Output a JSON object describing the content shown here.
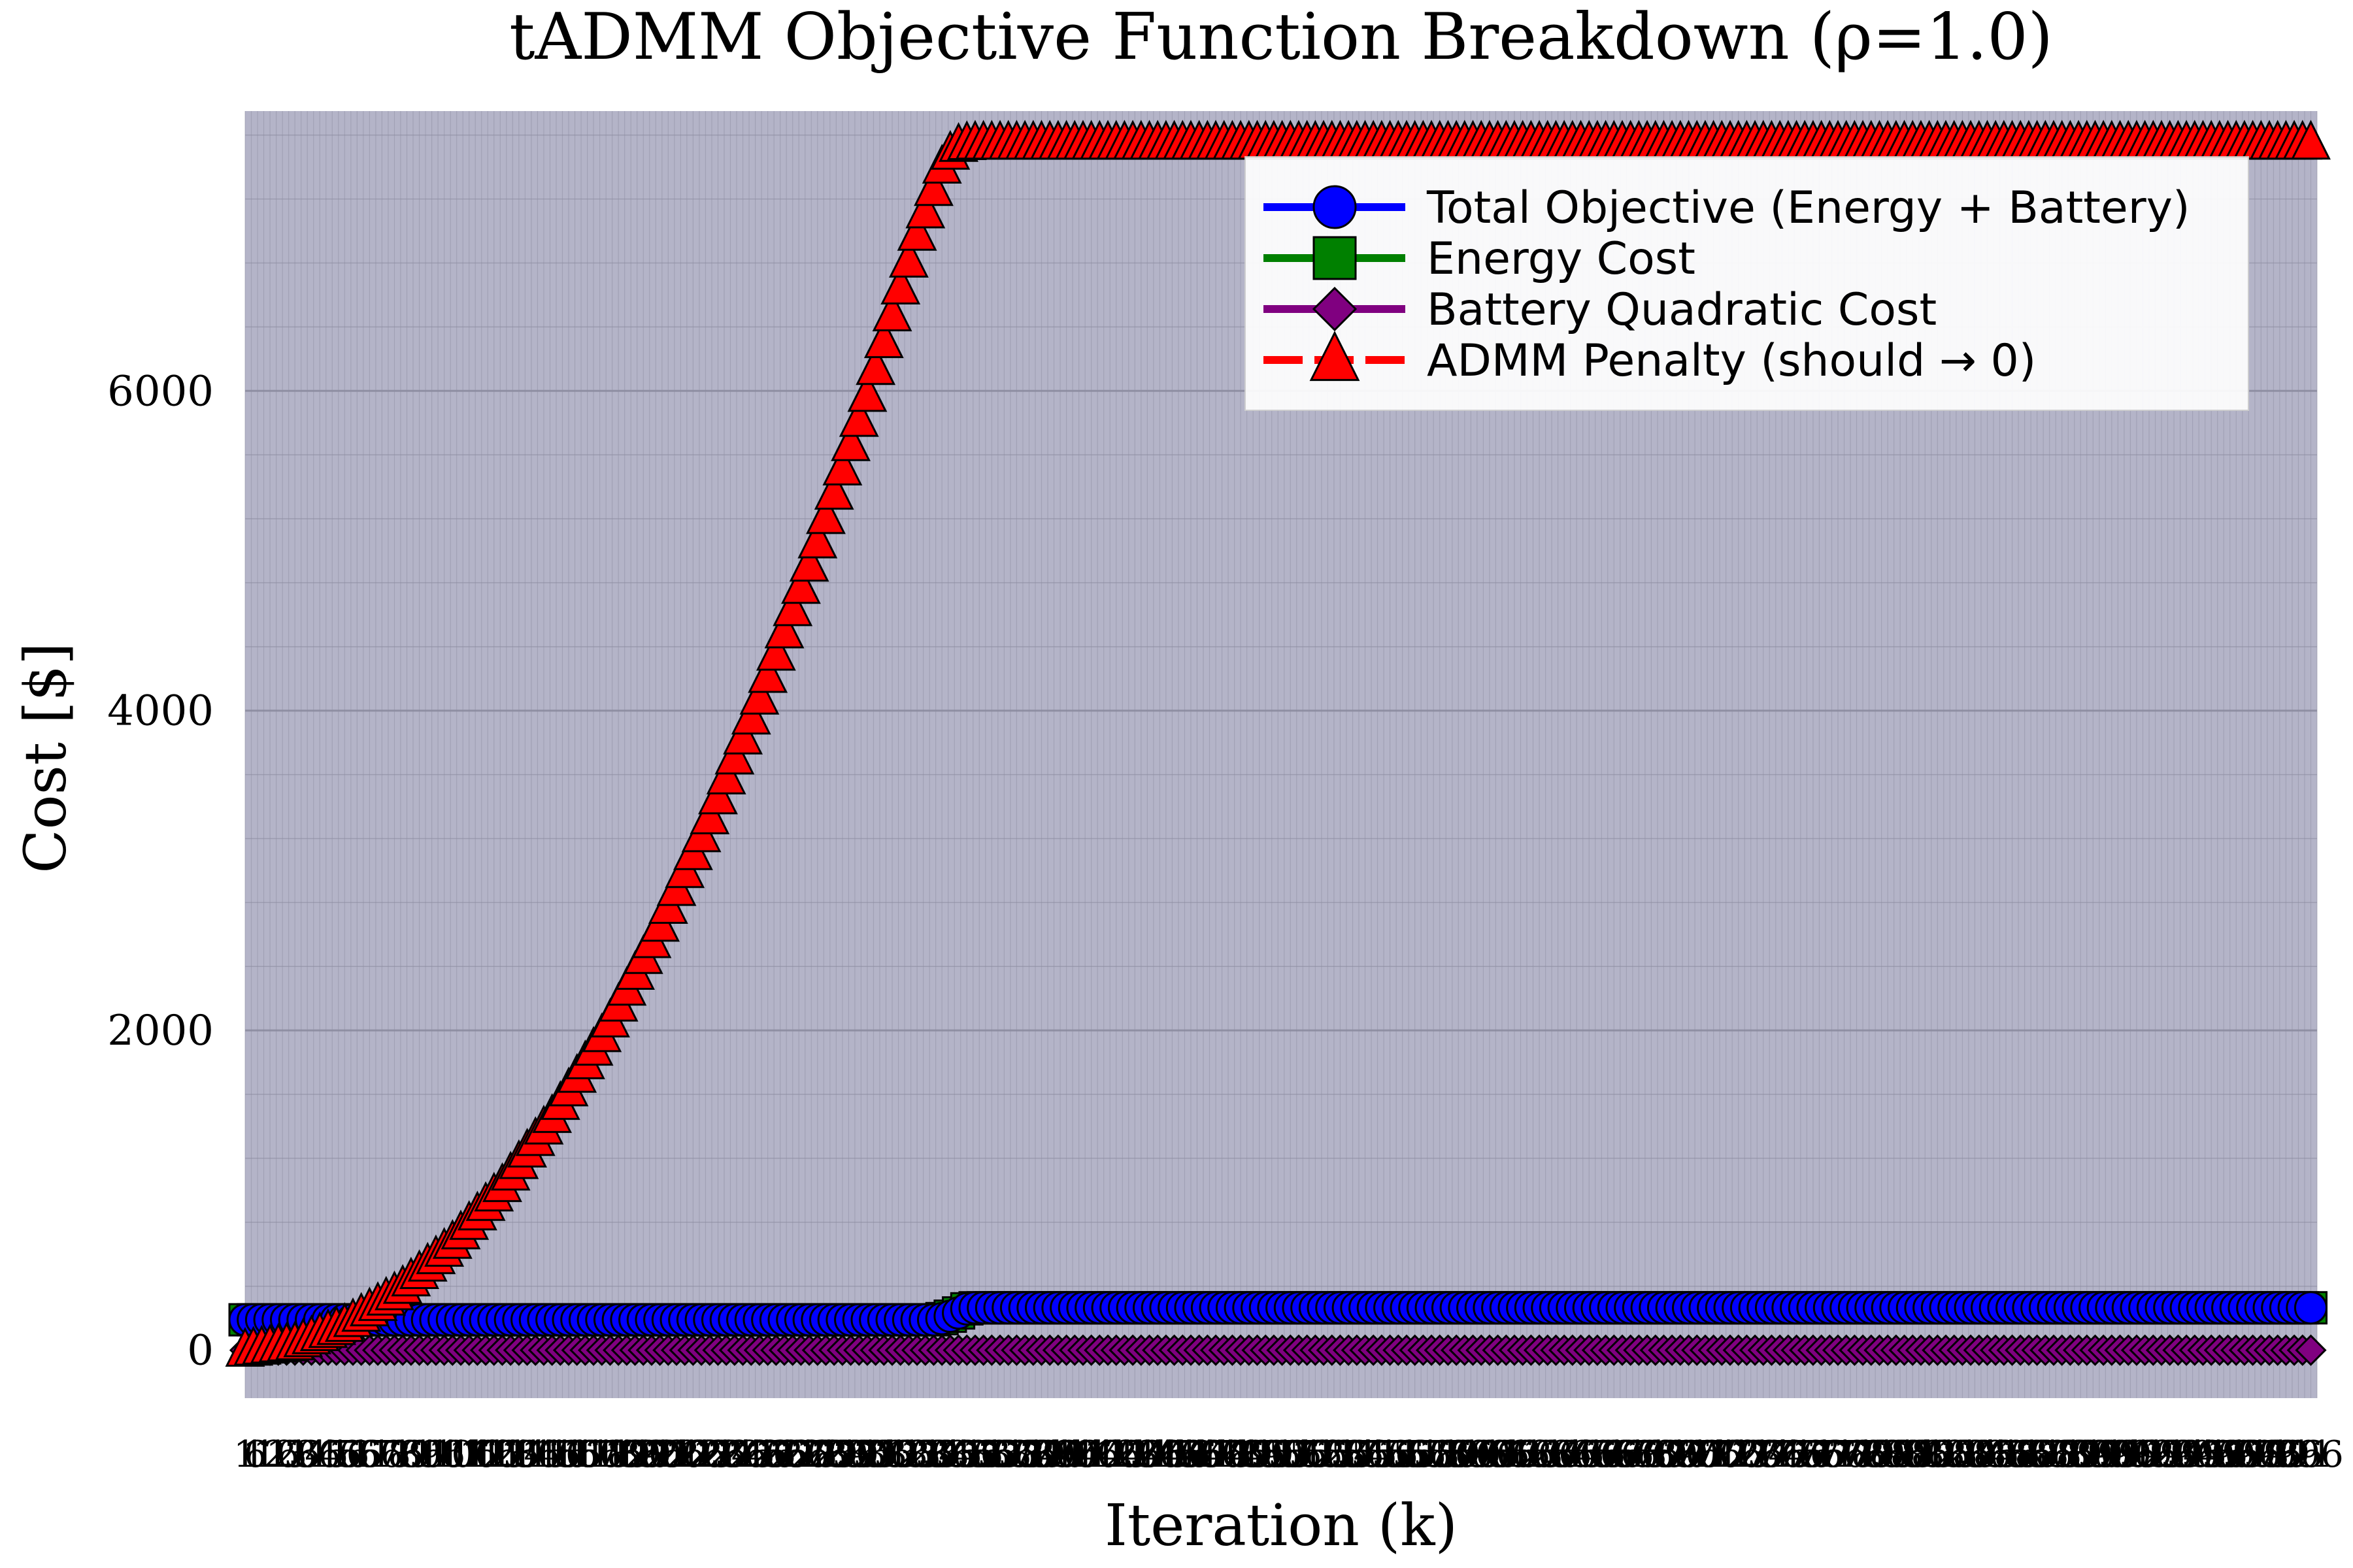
{
  "chart_data": {
    "type": "line",
    "title": "tADMM Objective Function Breakdown (ρ=1.0)",
    "xlabel": "Iteration (k)",
    "ylabel": "Cost [$]",
    "xlim": [
      1,
      1000
    ],
    "ylim": [
      -300,
      7750
    ],
    "yticks": [
      0,
      2000,
      4000,
      6000
    ],
    "grid": true,
    "legend_position": "top-right",
    "colors": {
      "plot_background": "#b4b4c8",
      "grid": "#8c8ca0",
      "total": "#0000ff",
      "energy": "#008000",
      "battery": "#800080",
      "penalty": "#ff0000"
    },
    "series": [
      {
        "name": "Total Objective (Energy + Battery)",
        "marker": "circle",
        "color": "#0000ff",
        "x": [
          1,
          100,
          200,
          300,
          335,
          343,
          350,
          400,
          500,
          600,
          700,
          800,
          900,
          1000
        ],
        "y": [
          190,
          190,
          190,
          190,
          190,
          220,
          265,
          265,
          265,
          265,
          265,
          265,
          265,
          265
        ]
      },
      {
        "name": "Energy Cost",
        "marker": "square",
        "color": "#008000",
        "x": [
          1,
          100,
          200,
          300,
          335,
          343,
          350,
          400,
          500,
          600,
          700,
          800,
          900,
          1000
        ],
        "y": [
          190,
          190,
          190,
          190,
          190,
          220,
          265,
          265,
          265,
          265,
          265,
          265,
          265,
          265
        ]
      },
      {
        "name": "Battery Quadratic Cost",
        "marker": "diamond",
        "color": "#800080",
        "x": [
          1,
          100,
          200,
          300,
          400,
          500,
          600,
          700,
          800,
          900,
          1000
        ],
        "y": [
          0,
          0,
          0,
          0,
          0,
          0,
          0,
          0,
          0,
          0,
          0
        ]
      },
      {
        "name": "ADMM Penalty (should → 0)",
        "marker": "triangle",
        "color": "#ff0000",
        "x": [
          1,
          25,
          50,
          75,
          100,
          125,
          150,
          175,
          200,
          225,
          250,
          275,
          300,
          325,
          337,
          343,
          350,
          400,
          500,
          600,
          700,
          800,
          900,
          1000
        ],
        "y": [
          0,
          40,
          160,
          370,
          660,
          1030,
          1480,
          2010,
          2630,
          3330,
          4110,
          4980,
          5930,
          6980,
          7400,
          7530,
          7550,
          7550,
          7550,
          7550,
          7550,
          7550,
          7550,
          7550
        ]
      }
    ]
  }
}
